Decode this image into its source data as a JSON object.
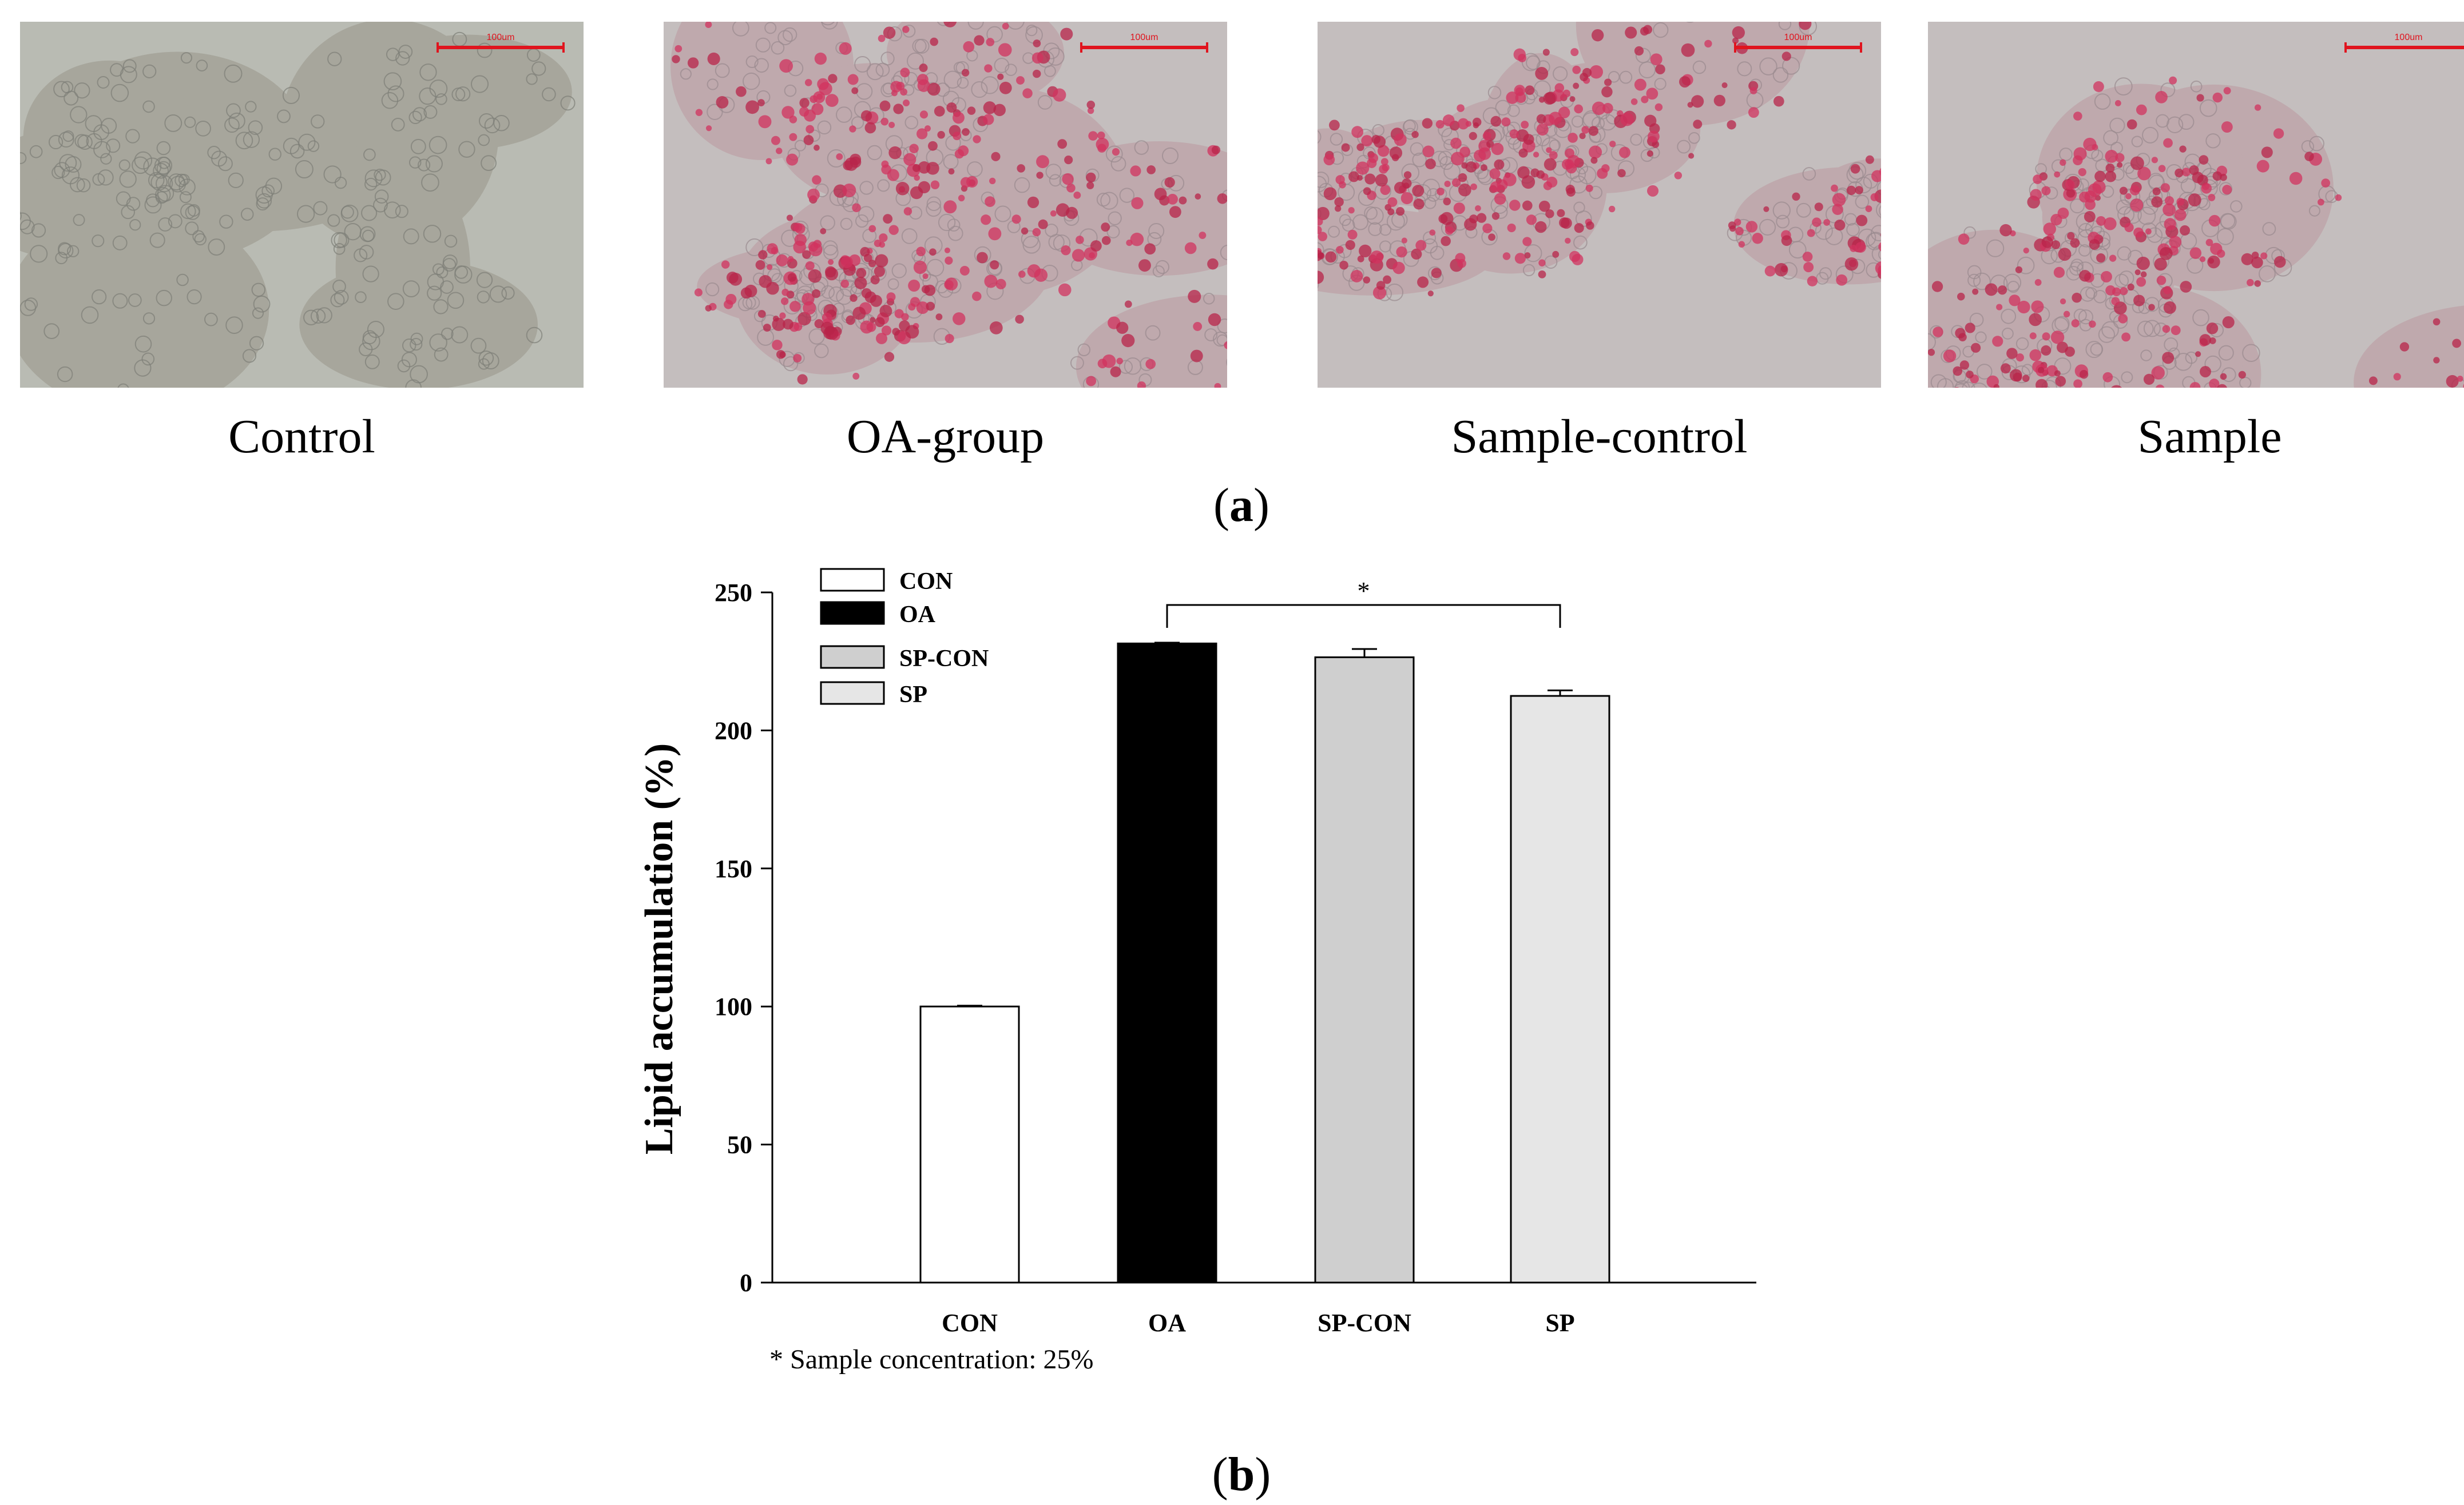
{
  "panel_a": {
    "images": [
      {
        "caption": "Control",
        "scale_bar": "100um",
        "stain": "none"
      },
      {
        "caption": "OA-group",
        "scale_bar": "100um",
        "stain": "heavy"
      },
      {
        "caption": "Sample-control",
        "scale_bar": "100um",
        "stain": "heavy"
      },
      {
        "caption": "Sample",
        "scale_bar": "100um",
        "stain": "medium"
      }
    ],
    "label_open": "(",
    "label_letter": "a",
    "label_close": ")"
  },
  "panel_b": {
    "label_open": "(",
    "label_letter": "b",
    "label_close": ")",
    "footnote": "* Sample concentration: 25%"
  },
  "chart_data": {
    "type": "bar",
    "categories": [
      "CON",
      "OA",
      "SP-CON",
      "SP"
    ],
    "values": [
      100,
      231.5,
      226.5,
      212.5
    ],
    "errors": [
      0.3,
      0.3,
      3,
      2
    ],
    "colors": [
      "#ffffff",
      "#000000",
      "#cfcfcf",
      "#e6e6e6"
    ],
    "ylabel": "Lipid accumulation (%)",
    "xlabel": "",
    "title": "",
    "ylim": [
      0,
      250
    ],
    "yticks": [
      0,
      50,
      100,
      150,
      200,
      250
    ],
    "legend": {
      "position": "top-left",
      "entries": [
        "CON",
        "OA",
        "SP-CON",
        "SP"
      ]
    },
    "significance": {
      "from": "OA",
      "to": "SP",
      "label": "*"
    },
    "grid": false
  }
}
